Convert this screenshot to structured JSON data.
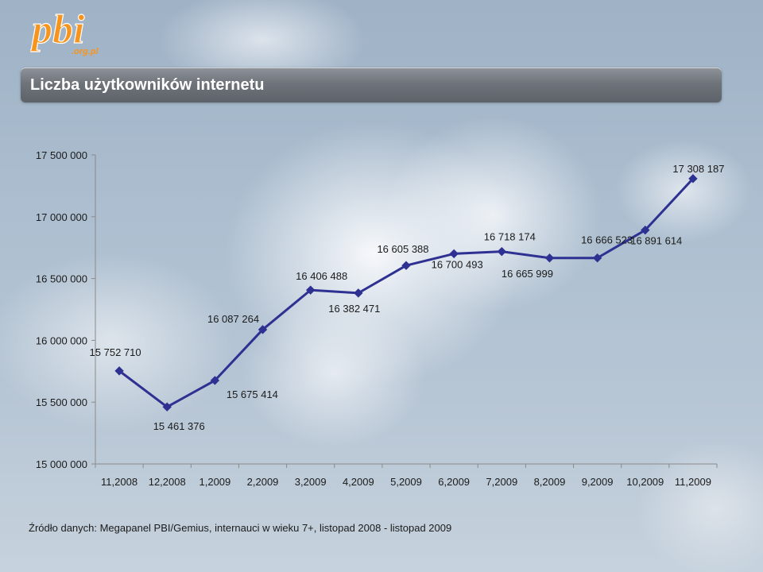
{
  "header": {
    "logo_text": "pbi",
    "logo_subtext": ".org.pl"
  },
  "chart_data": {
    "type": "line",
    "title": "Liczba użytkowników internetu",
    "categories": [
      "11,2008",
      "12,2008",
      "1,2009",
      "2,2009",
      "3,2009",
      "4,2009",
      "5,2009",
      "6,2009",
      "7,2009",
      "8,2009",
      "9,2009",
      "10,2009",
      "11,2009"
    ],
    "series": [
      {
        "values": [
          15752710,
          15461376,
          15675414,
          16087264,
          16406488,
          16382471,
          16605388,
          16700493,
          16718174,
          16665999,
          16666523,
          16891614,
          17308187
        ],
        "labels": [
          "15 752 710",
          "15 461 376",
          "15 675 414",
          "16 087 264",
          "16 406 488",
          "16 382 471",
          "16 605 388",
          "16 700 493",
          "16 718 174",
          "16 665 999",
          "16 666 523",
          "16 891 614",
          "17 308 187"
        ],
        "color": "#2e3192"
      }
    ],
    "ylim": [
      15000000,
      17500000
    ],
    "yticks": [
      15000000,
      15500000,
      16000000,
      16500000,
      17000000,
      17500000
    ],
    "ytick_labels": [
      "15 000 000",
      "15 500 000",
      "16 000 000",
      "16 500 000",
      "17 000 000",
      "17 500 000"
    ],
    "xlabel": "",
    "ylabel": "",
    "grid": false,
    "legend": "none",
    "accent_color": "#f7941d"
  },
  "footer": {
    "source": "Źródło danych: Megapanel PBI/Gemius, internauci w wieku 7+, listopad 2008 - listopad  2009"
  }
}
